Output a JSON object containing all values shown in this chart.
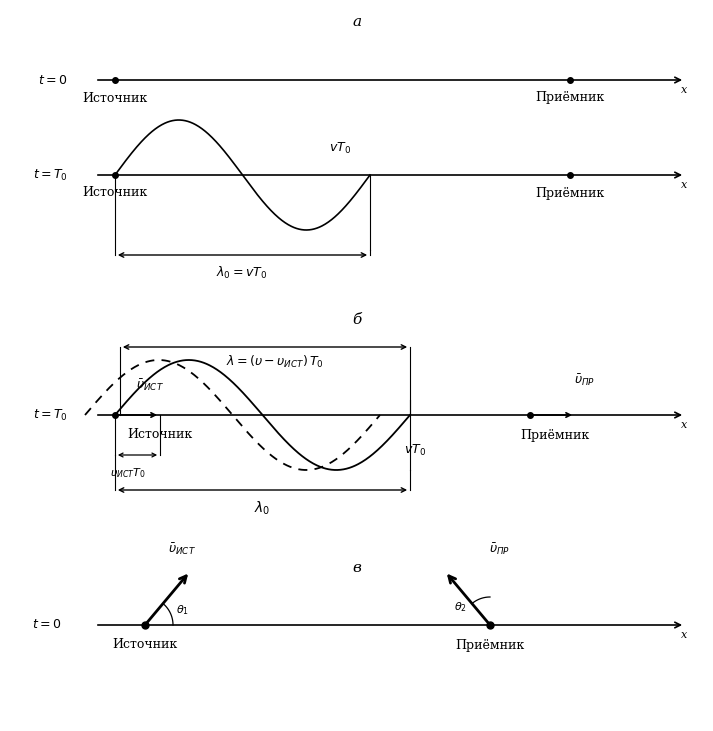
{
  "bg_color": "#ffffff",
  "text_color": "#000000",
  "panel_a_label": "а",
  "panel_b_label": "б",
  "panel_c_label": "в",
  "source_label": "Источник",
  "receiver_label": "Приёмник",
  "figw": 7.13,
  "figh": 7.31,
  "dpi": 100
}
